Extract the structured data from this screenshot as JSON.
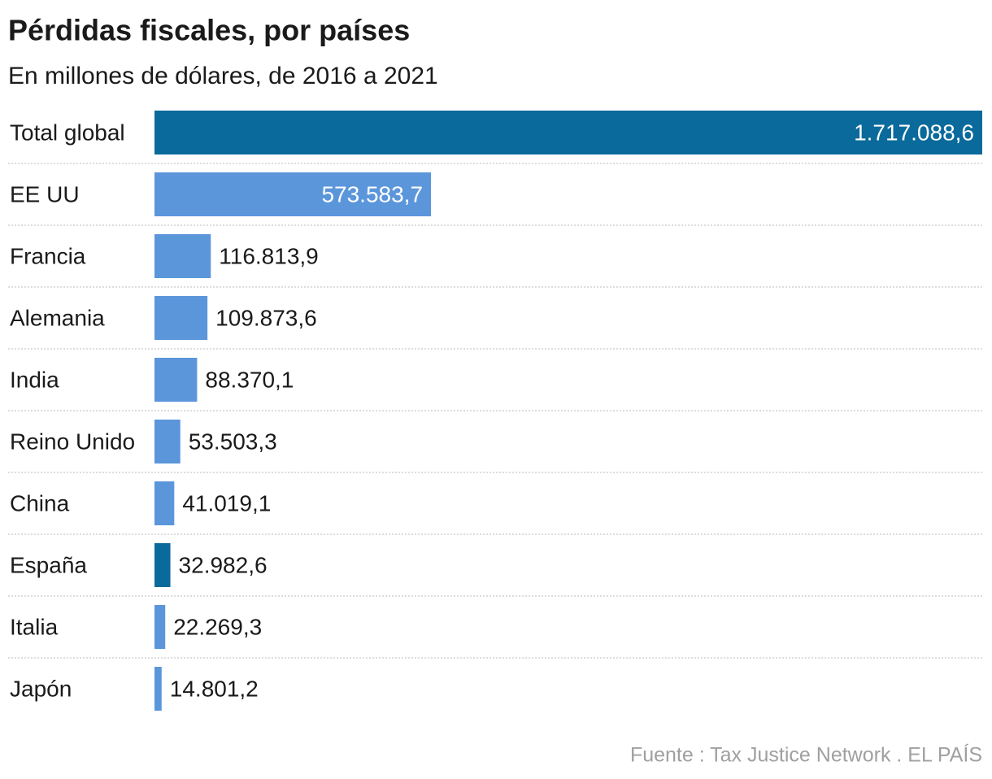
{
  "chart_data": {
    "type": "hbar",
    "title": "Pérdidas fiscales, por países",
    "subtitle": "En millones de dólares, de 2016 a 2021",
    "categories": [
      "Total global",
      "EE UU",
      "Francia",
      "Alemania",
      "India",
      "Reino Unido",
      "China",
      "España",
      "Italia",
      "Japón"
    ],
    "values": [
      1717088.6,
      573583.7,
      116813.9,
      109873.6,
      88370.1,
      53503.3,
      41019.1,
      32982.6,
      22269.3,
      14801.2
    ],
    "value_labels": [
      "1.717.088,6",
      "573.583,7",
      "116.813,9",
      "109.873,6",
      "88.370,1",
      "53.503,3",
      "41.019,1",
      "32.982,6",
      "22.269,3",
      "14.801,2"
    ],
    "colors": [
      "#0a6a9b",
      "#5b96db",
      "#5b96db",
      "#5b96db",
      "#5b96db",
      "#5b96db",
      "#5b96db",
      "#0a6a9b",
      "#5b96db",
      "#5b96db"
    ],
    "source": "Fuente : Tax Justice Network . EL PAÍS"
  }
}
